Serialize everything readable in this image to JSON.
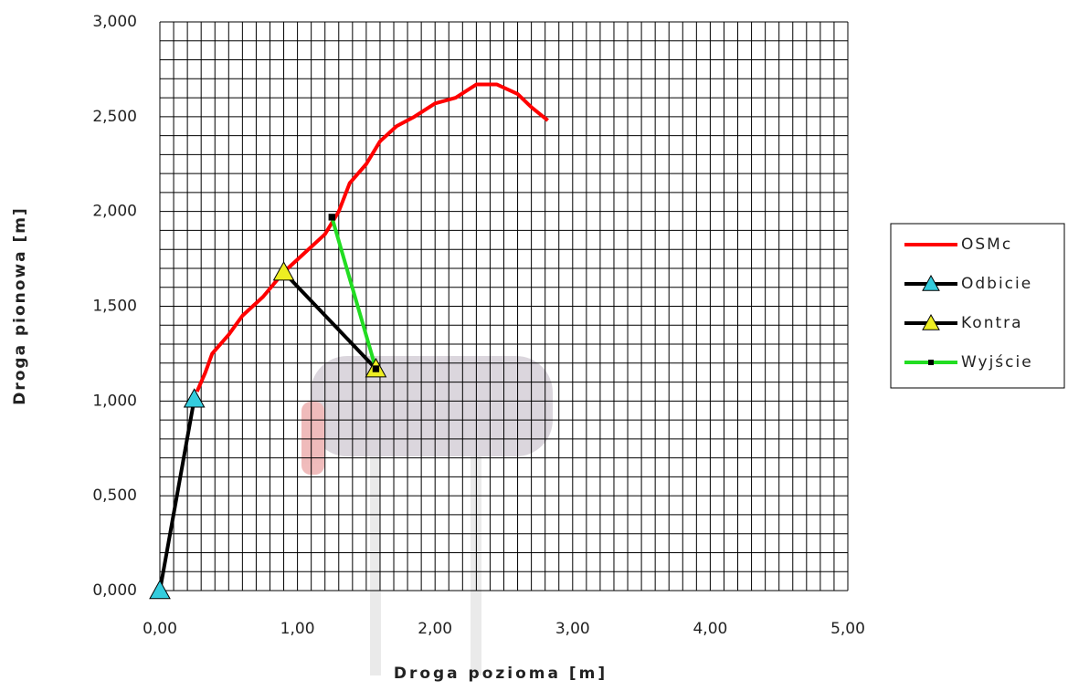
{
  "chart_data": {
    "type": "line",
    "x_label": "Droga pozioma [m]",
    "y_label": "Droga pionowa [m]",
    "xlim": [
      0,
      5
    ],
    "ylim": [
      0,
      3
    ],
    "xticks": [
      {
        "value": 0,
        "label": "0,00"
      },
      {
        "value": 1,
        "label": "1,00"
      },
      {
        "value": 2,
        "label": "2,00"
      },
      {
        "value": 3,
        "label": "3,00"
      },
      {
        "value": 4,
        "label": "4,00"
      },
      {
        "value": 5,
        "label": "5,00"
      }
    ],
    "yticks": [
      {
        "value": 0,
        "label": "0,000"
      },
      {
        "value": 0.5,
        "label": "0,500"
      },
      {
        "value": 1,
        "label": "1,000"
      },
      {
        "value": 1.5,
        "label": "1,500"
      },
      {
        "value": 2,
        "label": "2,000"
      },
      {
        "value": 2.5,
        "label": "2,500"
      },
      {
        "value": 3,
        "label": "3,000"
      }
    ],
    "grid": {
      "x_step": 0.1,
      "y_step": 0.1
    },
    "legend": "right",
    "series": [
      {
        "name": "OSMc",
        "color": "#ff0000",
        "marker": "none",
        "x": [
          0.27,
          0.33,
          0.38,
          0.5,
          0.6,
          0.75,
          0.9,
          1.05,
          1.2,
          1.3,
          1.38,
          1.5,
          1.6,
          1.72,
          1.85,
          2.0,
          2.15,
          2.3,
          2.45,
          2.6,
          2.7,
          2.82
        ],
        "values": [
          1.05,
          1.15,
          1.25,
          1.35,
          1.45,
          1.55,
          1.68,
          1.78,
          1.88,
          2.0,
          2.15,
          2.25,
          2.37,
          2.45,
          2.5,
          2.57,
          2.6,
          2.67,
          2.67,
          2.62,
          2.55,
          2.48
        ]
      },
      {
        "name": "Odbicie",
        "color": "#000000",
        "marker": "triangle",
        "marker_color": "#33ccdd",
        "x": [
          0,
          0.25
        ],
        "values": [
          0,
          1.01
        ]
      },
      {
        "name": "Kontra",
        "color": "#000000",
        "marker": "triangle",
        "marker_color": "#eeee22",
        "x": [
          0.9,
          1.57
        ],
        "values": [
          1.68,
          1.17
        ]
      },
      {
        "name": "Wyjście",
        "color": "#22dd22",
        "marker": "square",
        "marker_color": "#000000",
        "x": [
          1.25,
          1.57
        ],
        "values": [
          1.97,
          1.17
        ]
      }
    ]
  }
}
